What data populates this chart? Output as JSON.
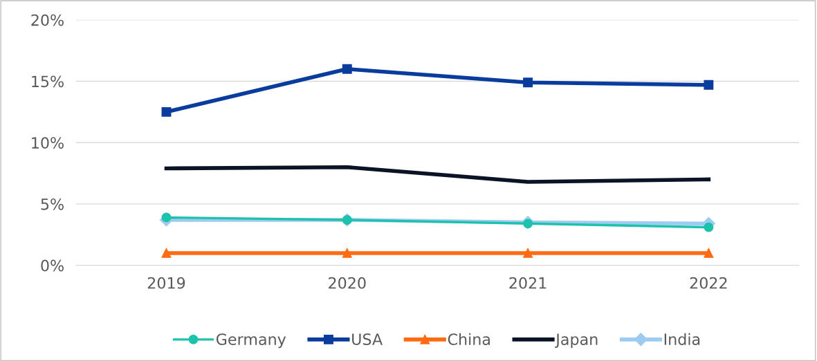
{
  "chart_data": {
    "type": "line",
    "categories": [
      "2019",
      "2020",
      "2021",
      "2022"
    ],
    "series": [
      {
        "name": "Germany",
        "color": "#1cc2ac",
        "marker": "circle",
        "values": [
          3.9,
          3.7,
          3.4,
          3.1
        ]
      },
      {
        "name": "USA",
        "color": "#0a3c9e",
        "marker": "square",
        "values": [
          12.5,
          16.0,
          14.9,
          14.7
        ]
      },
      {
        "name": "China",
        "color": "#ff6a13",
        "marker": "triangle",
        "values": [
          1.0,
          1.0,
          1.0,
          1.0
        ]
      },
      {
        "name": "Japan",
        "color": "#0b1426",
        "marker": "none",
        "values": [
          7.9,
          8.0,
          6.8,
          7.0
        ]
      },
      {
        "name": "India",
        "color": "#9dcbf2",
        "marker": "diamond",
        "values": [
          3.7,
          3.7,
          3.5,
          3.4
        ]
      }
    ],
    "ylim": [
      0,
      20
    ],
    "yticks": [
      {
        "value": 0,
        "label": "0%"
      },
      {
        "value": 5,
        "label": "5%"
      },
      {
        "value": 10,
        "label": "10%"
      },
      {
        "value": 15,
        "label": "15%"
      },
      {
        "value": 20,
        "label": "20%"
      }
    ],
    "grid": "y",
    "legend": "bottom",
    "line_style": "solid"
  }
}
